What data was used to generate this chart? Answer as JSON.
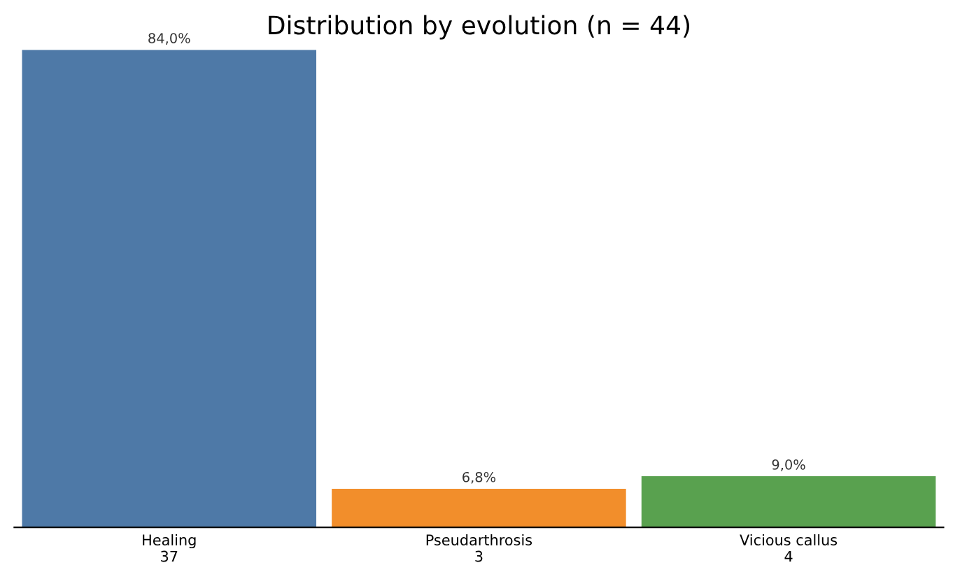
{
  "chart_data": {
    "type": "bar",
    "title": "Distribution by evolution (n = 44)",
    "categories": [
      "Healing\n37",
      "Pseudarthrosis\n3",
      "Vicious callus\n4"
    ],
    "values": [
      84.0,
      6.8,
      9.0
    ],
    "value_labels": [
      "84,0%",
      "6,8%",
      "9,0%"
    ],
    "colors": [
      "#4e79a7",
      "#f28e2b",
      "#59a14f"
    ],
    "grid": false,
    "legend": false,
    "tick_labels": "x"
  }
}
